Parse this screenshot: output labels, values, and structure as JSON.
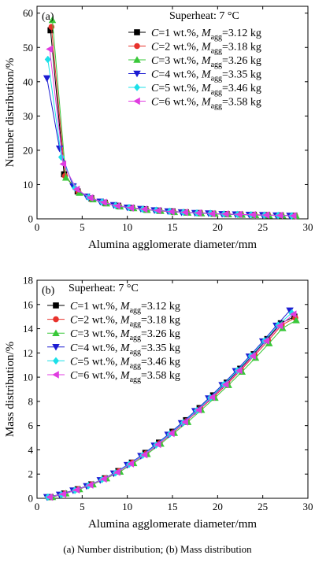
{
  "caption": "(a)  Number distribution;  (b)  Mass distribution",
  "legend_entries": [
    {
      "c": "C",
      "rest": "=1 wt.%, ",
      "m": "M",
      "sub": "agg",
      "val": "=3.12 kg"
    },
    {
      "c": "C",
      "rest": "=2 wt.%, ",
      "m": "M",
      "sub": "agg",
      "val": "=3.18 kg"
    },
    {
      "c": "C",
      "rest": "=3 wt.%, ",
      "m": "M",
      "sub": "agg",
      "val": "=3.26 kg"
    },
    {
      "c": "C",
      "rest": "=4 wt.%, ",
      "m": "M",
      "sub": "agg",
      "val": "=3.35 kg"
    },
    {
      "c": "C",
      "rest": "=5 wt.%, ",
      "m": "M",
      "sub": "agg",
      "val": "=3.46 kg"
    },
    {
      "c": "C",
      "rest": "=6 wt.%, ",
      "m": "M",
      "sub": "agg",
      "val": "=3.58 kg"
    }
  ],
  "chart_data": [
    {
      "type": "line",
      "panel_label": "(a)",
      "annotation": "Superheat: 7 °C",
      "xlabel": "Alumina agglomerate diameter/mm",
      "ylabel": "Number distribution/%",
      "xlim": [
        0,
        30
      ],
      "ylim": [
        0,
        62
      ],
      "xticks": [
        "0",
        "5",
        "10",
        "15",
        "20",
        "25",
        "30"
      ],
      "yticks": [
        "0",
        "10",
        "20",
        "30",
        "40",
        "50",
        "60"
      ],
      "xticks_v": [
        0,
        5,
        10,
        15,
        20,
        25,
        30
      ],
      "yticks_v": [
        0,
        10,
        20,
        30,
        40,
        50,
        60
      ],
      "legend_position": "top-right",
      "series": [
        {
          "color": "#000000",
          "marker": "square",
          "points": [
            [
              1.5,
              55
            ],
            [
              3.0,
              13
            ],
            [
              4.5,
              8
            ],
            [
              6.0,
              6
            ],
            [
              7.5,
              4.7
            ],
            [
              9.0,
              3.8
            ],
            [
              10.5,
              3.2
            ],
            [
              12.0,
              2.8
            ],
            [
              13.5,
              2.4
            ],
            [
              15.0,
              2.2
            ],
            [
              16.5,
              1.9
            ],
            [
              18.0,
              1.7
            ],
            [
              19.5,
              1.5
            ],
            [
              21.0,
              1.4
            ],
            [
              22.5,
              1.3
            ],
            [
              24.0,
              1.2
            ],
            [
              25.5,
              1.1
            ],
            [
              27.0,
              1.0
            ],
            [
              28.5,
              0.9
            ]
          ]
        },
        {
          "color": "#e8322c",
          "marker": "circle",
          "points": [
            [
              1.6,
              56
            ],
            [
              3.1,
              12.5
            ],
            [
              4.6,
              7.8
            ],
            [
              6.1,
              5.8
            ],
            [
              7.6,
              4.6
            ],
            [
              9.1,
              3.7
            ],
            [
              10.6,
              3.1
            ],
            [
              12.1,
              2.7
            ],
            [
              13.6,
              2.3
            ],
            [
              15.1,
              2.1
            ],
            [
              16.6,
              1.9
            ],
            [
              18.1,
              1.7
            ],
            [
              19.6,
              1.5
            ],
            [
              21.1,
              1.4
            ],
            [
              22.6,
              1.3
            ],
            [
              24.1,
              1.2
            ],
            [
              25.6,
              1.1
            ],
            [
              27.1,
              1.0
            ],
            [
              28.6,
              0.9
            ]
          ]
        },
        {
          "color": "#39c839",
          "marker": "triangle-up",
          "points": [
            [
              1.7,
              58
            ],
            [
              3.2,
              12
            ],
            [
              4.7,
              7.6
            ],
            [
              6.2,
              5.7
            ],
            [
              7.7,
              4.5
            ],
            [
              9.2,
              3.6
            ],
            [
              10.7,
              3.1
            ],
            [
              12.2,
              2.6
            ],
            [
              13.7,
              2.3
            ],
            [
              15.2,
              2.0
            ],
            [
              16.7,
              1.8
            ],
            [
              18.2,
              1.6
            ],
            [
              19.7,
              1.5
            ],
            [
              21.2,
              1.3
            ],
            [
              22.7,
              1.2
            ],
            [
              24.2,
              1.1
            ],
            [
              25.7,
              1.0
            ],
            [
              27.2,
              1.0
            ],
            [
              28.7,
              0.9
            ]
          ]
        },
        {
          "color": "#1c1cd2",
          "marker": "triangle-down",
          "points": [
            [
              1.1,
              41
            ],
            [
              2.5,
              20.5
            ],
            [
              4.0,
              9.5
            ],
            [
              5.5,
              6.5
            ],
            [
              7.0,
              5.0
            ],
            [
              8.5,
              4.0
            ],
            [
              10.0,
              3.3
            ],
            [
              11.5,
              2.9
            ],
            [
              13.0,
              2.5
            ],
            [
              14.5,
              2.2
            ],
            [
              16.0,
              1.9
            ],
            [
              17.5,
              1.7
            ],
            [
              19.0,
              1.6
            ],
            [
              20.5,
              1.4
            ],
            [
              22.0,
              1.3
            ],
            [
              23.5,
              1.2
            ],
            [
              25.0,
              1.1
            ],
            [
              26.5,
              1.0
            ],
            [
              28.0,
              0.9
            ]
          ]
        },
        {
          "color": "#1ce0e8",
          "marker": "diamond",
          "points": [
            [
              1.2,
              46.5
            ],
            [
              2.7,
              18
            ],
            [
              4.2,
              9
            ],
            [
              5.7,
              6.3
            ],
            [
              7.2,
              4.9
            ],
            [
              8.7,
              3.9
            ],
            [
              10.2,
              3.3
            ],
            [
              11.7,
              2.8
            ],
            [
              13.2,
              2.5
            ],
            [
              14.7,
              2.2
            ],
            [
              16.2,
              1.9
            ],
            [
              17.7,
              1.7
            ],
            [
              19.2,
              1.6
            ],
            [
              20.7,
              1.4
            ],
            [
              22.2,
              1.3
            ],
            [
              23.7,
              1.2
            ],
            [
              25.2,
              1.1
            ],
            [
              26.7,
              1.0
            ],
            [
              28.2,
              0.9
            ]
          ]
        },
        {
          "color": "#e03ce0",
          "marker": "triangle-left",
          "points": [
            [
              1.4,
              49.5
            ],
            [
              2.9,
              16
            ],
            [
              4.4,
              8.6
            ],
            [
              5.9,
              6.1
            ],
            [
              7.4,
              4.8
            ],
            [
              8.9,
              3.8
            ],
            [
              10.4,
              3.2
            ],
            [
              11.9,
              2.8
            ],
            [
              13.4,
              2.4
            ],
            [
              14.9,
              2.1
            ],
            [
              16.4,
              1.9
            ],
            [
              17.9,
              1.7
            ],
            [
              19.4,
              1.5
            ],
            [
              20.9,
              1.4
            ],
            [
              22.4,
              1.3
            ],
            [
              23.9,
              1.2
            ],
            [
              25.4,
              1.1
            ],
            [
              26.9,
              1.0
            ],
            [
              28.4,
              0.9
            ]
          ]
        }
      ]
    },
    {
      "type": "line",
      "panel_label": "(b)",
      "annotation": "Superheat: 7 °C",
      "xlabel": "Alumina agglomerate diameter/mm",
      "ylabel": "Mass distribution/%",
      "xlim": [
        0,
        30
      ],
      "ylim": [
        0,
        18
      ],
      "xticks": [
        "0",
        "5",
        "10",
        "15",
        "20",
        "25",
        "30"
      ],
      "yticks": [
        "0",
        "2",
        "4",
        "6",
        "8",
        "10",
        "12",
        "14",
        "16",
        "18"
      ],
      "xticks_v": [
        0,
        5,
        10,
        15,
        20,
        25,
        30
      ],
      "yticks_v": [
        0,
        2,
        4,
        6,
        8,
        10,
        12,
        14,
        16,
        18
      ],
      "legend_position": "top-left",
      "series": [
        {
          "color": "#000000",
          "marker": "square",
          "points": [
            [
              1.5,
              0.1
            ],
            [
              3.0,
              0.4
            ],
            [
              4.5,
              0.75
            ],
            [
              6.0,
              1.15
            ],
            [
              7.5,
              1.65
            ],
            [
              9.0,
              2.25
            ],
            [
              10.5,
              2.95
            ],
            [
              12.0,
              3.75
            ],
            [
              13.5,
              4.6
            ],
            [
              15.0,
              5.5
            ],
            [
              16.5,
              6.45
            ],
            [
              18.0,
              7.45
            ],
            [
              19.5,
              8.5
            ],
            [
              21.0,
              9.55
            ],
            [
              22.5,
              10.7
            ],
            [
              24.0,
              11.9
            ],
            [
              25.5,
              13.15
            ],
            [
              27.0,
              14.45
            ],
            [
              28.5,
              15.0
            ]
          ]
        },
        {
          "color": "#e8322c",
          "marker": "circle",
          "points": [
            [
              1.6,
              0.1
            ],
            [
              3.1,
              0.4
            ],
            [
              4.6,
              0.75
            ],
            [
              6.1,
              1.15
            ],
            [
              7.6,
              1.65
            ],
            [
              9.1,
              2.25
            ],
            [
              10.6,
              2.95
            ],
            [
              12.1,
              3.7
            ],
            [
              13.6,
              4.55
            ],
            [
              15.1,
              5.45
            ],
            [
              16.6,
              6.4
            ],
            [
              18.1,
              7.4
            ],
            [
              19.6,
              8.4
            ],
            [
              21.1,
              9.45
            ],
            [
              22.6,
              10.6
            ],
            [
              24.1,
              11.8
            ],
            [
              25.6,
              13.0
            ],
            [
              27.1,
              14.3
            ],
            [
              28.6,
              14.9
            ]
          ]
        },
        {
          "color": "#39c839",
          "marker": "triangle-up",
          "points": [
            [
              1.7,
              0.1
            ],
            [
              3.2,
              0.4
            ],
            [
              4.7,
              0.75
            ],
            [
              6.2,
              1.15
            ],
            [
              7.7,
              1.65
            ],
            [
              9.2,
              2.2
            ],
            [
              10.7,
              2.9
            ],
            [
              12.2,
              3.65
            ],
            [
              13.7,
              4.5
            ],
            [
              15.2,
              5.4
            ],
            [
              16.7,
              6.3
            ],
            [
              18.2,
              7.3
            ],
            [
              19.7,
              8.3
            ],
            [
              21.2,
              9.35
            ],
            [
              22.7,
              10.45
            ],
            [
              24.2,
              11.6
            ],
            [
              25.7,
              12.8
            ],
            [
              27.2,
              14.05
            ],
            [
              28.7,
              14.7
            ]
          ]
        },
        {
          "color": "#1c1cd2",
          "marker": "triangle-down",
          "points": [
            [
              1.1,
              0.1
            ],
            [
              2.5,
              0.3
            ],
            [
              4.0,
              0.65
            ],
            [
              5.5,
              1.0
            ],
            [
              7.0,
              1.5
            ],
            [
              8.5,
              2.05
            ],
            [
              10.0,
              2.75
            ],
            [
              11.5,
              3.5
            ],
            [
              13.0,
              4.35
            ],
            [
              14.5,
              5.25
            ],
            [
              16.0,
              6.2
            ],
            [
              17.5,
              7.2
            ],
            [
              19.0,
              8.25
            ],
            [
              20.5,
              9.35
            ],
            [
              22.0,
              10.5
            ],
            [
              23.5,
              11.7
            ],
            [
              25.0,
              12.95
            ],
            [
              26.5,
              14.25
            ],
            [
              28.0,
              15.5
            ]
          ]
        },
        {
          "color": "#1ce0e8",
          "marker": "diamond",
          "points": [
            [
              1.2,
              0.1
            ],
            [
              2.7,
              0.3
            ],
            [
              4.2,
              0.65
            ],
            [
              5.7,
              1.05
            ],
            [
              7.2,
              1.55
            ],
            [
              8.7,
              2.1
            ],
            [
              10.2,
              2.8
            ],
            [
              11.7,
              3.55
            ],
            [
              13.2,
              4.4
            ],
            [
              14.7,
              5.3
            ],
            [
              16.2,
              6.25
            ],
            [
              17.7,
              7.25
            ],
            [
              19.2,
              8.3
            ],
            [
              20.7,
              9.4
            ],
            [
              22.2,
              10.55
            ],
            [
              23.7,
              11.75
            ],
            [
              25.2,
              13.0
            ],
            [
              26.7,
              14.3
            ],
            [
              28.2,
              15.3
            ]
          ]
        },
        {
          "color": "#e03ce0",
          "marker": "triangle-left",
          "points": [
            [
              1.4,
              0.1
            ],
            [
              2.9,
              0.35
            ],
            [
              4.4,
              0.7
            ],
            [
              5.9,
              1.1
            ],
            [
              7.4,
              1.6
            ],
            [
              8.9,
              2.15
            ],
            [
              10.4,
              2.85
            ],
            [
              11.9,
              3.6
            ],
            [
              13.4,
              4.45
            ],
            [
              14.9,
              5.35
            ],
            [
              16.4,
              6.3
            ],
            [
              17.9,
              7.3
            ],
            [
              19.4,
              8.35
            ],
            [
              20.9,
              9.4
            ],
            [
              22.4,
              10.55
            ],
            [
              23.9,
              11.75
            ],
            [
              25.4,
              13.0
            ],
            [
              26.9,
              14.25
            ],
            [
              28.4,
              15.2
            ]
          ]
        }
      ]
    }
  ]
}
